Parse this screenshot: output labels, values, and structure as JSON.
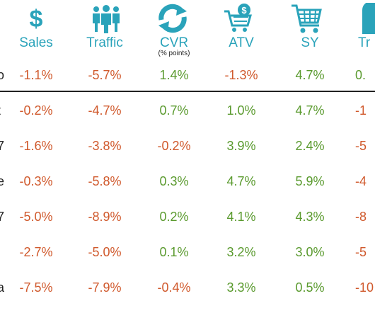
{
  "colors": {
    "accent": "#2aa3ba",
    "negative": "#d0592c",
    "positive": "#5a9a2e"
  },
  "columns": [
    {
      "key": "sales",
      "label": "Sales",
      "icon": "dollar-icon"
    },
    {
      "key": "traffic",
      "label": "Traffic",
      "icon": "people-icon"
    },
    {
      "key": "cvr",
      "label": "CVR",
      "sublabel": "(% points)",
      "icon": "refresh-arrows-icon"
    },
    {
      "key": "atv",
      "label": "ATV",
      "icon": "cart-dollar-icon"
    },
    {
      "key": "sy",
      "label": "SY",
      "icon": "shopping-cart-icon"
    },
    {
      "key": "tr",
      "label": "Tr",
      "icon": "partial-icon"
    }
  ],
  "row_label_glyphs": [
    "o",
    "t",
    "7",
    "e",
    "7",
    "",
    "a"
  ],
  "rows": [
    {
      "values": [
        "-1.1%",
        "-5.7%",
        "1.4%",
        "-1.3%",
        "4.7%",
        "0."
      ]
    },
    {
      "values": [
        "-0.2%",
        "-4.7%",
        "0.7%",
        "1.0%",
        "4.7%",
        "-1"
      ]
    },
    {
      "values": [
        "-1.6%",
        "-3.8%",
        "-0.2%",
        "3.9%",
        "2.4%",
        "-5"
      ]
    },
    {
      "values": [
        "-0.3%",
        "-5.8%",
        "0.3%",
        "4.7%",
        "5.9%",
        "-4"
      ]
    },
    {
      "values": [
        "-5.0%",
        "-8.9%",
        "0.2%",
        "4.1%",
        "4.3%",
        "-8"
      ]
    },
    {
      "values": [
        "-2.7%",
        "-5.0%",
        "0.1%",
        "3.2%",
        "3.0%",
        "-5"
      ]
    },
    {
      "values": [
        "-7.5%",
        "-7.9%",
        "-0.4%",
        "3.3%",
        "0.5%",
        "-10"
      ]
    }
  ]
}
